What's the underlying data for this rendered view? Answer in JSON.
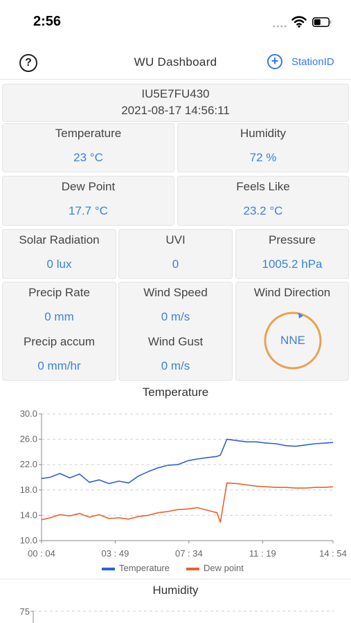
{
  "status_bar": {
    "time": "2:56"
  },
  "nav": {
    "help_label": "?",
    "title": "WU Dashboard",
    "add_label": "+",
    "station_button": "StationID"
  },
  "station": {
    "id": "IU5E7FU430",
    "datetime": "2021-08-17 14:56:11"
  },
  "readings": {
    "temperature": {
      "label": "Temperature",
      "value": "23 °C"
    },
    "humidity": {
      "label": "Humidity",
      "value": "72 %"
    },
    "dew_point": {
      "label": "Dew Point",
      "value": "17.7 °C"
    },
    "feels_like": {
      "label": "Feels Like",
      "value": "23.2 °C"
    },
    "solar_radiation": {
      "label": "Solar Radiation",
      "value": "0 lux"
    },
    "uvi": {
      "label": "UVI",
      "value": "0"
    },
    "pressure": {
      "label": "Pressure",
      "value": "1005.2 hPa"
    },
    "precip_rate": {
      "label": "Precip Rate",
      "value": "0 mm"
    },
    "precip_accum": {
      "label": "Precip accum",
      "value": "0 mm/hr"
    },
    "wind_speed": {
      "label": "Wind Speed",
      "value": "0 m/s"
    },
    "wind_gust": {
      "label": "Wind Gust",
      "value": "0 m/s"
    },
    "wind_direction": {
      "label": "Wind Direction",
      "value": "NNE"
    }
  },
  "chart_data": [
    {
      "type": "line",
      "title": "Temperature",
      "ylim": [
        10.0,
        30.0
      ],
      "y_ticks": [
        "10.0",
        "14.0",
        "18.0",
        "22.0",
        "26.0",
        "30.0"
      ],
      "x_ticks": [
        "00 : 04",
        "03 : 49",
        "07 : 34",
        "11 : 19",
        "14 : 54"
      ],
      "grid": "dashed horizontal",
      "legend_position": "bottom",
      "series": [
        {
          "name": "Temperature",
          "color": "#2f5fd8",
          "x": [
            "00:04",
            "00:30",
            "01:00",
            "01:30",
            "02:00",
            "02:30",
            "03:00",
            "03:30",
            "04:00",
            "04:30",
            "05:00",
            "05:30",
            "06:00",
            "06:30",
            "07:00",
            "07:30",
            "08:00",
            "08:30",
            "09:00",
            "09:10",
            "09:30",
            "10:00",
            "10:30",
            "11:00",
            "11:30",
            "12:00",
            "12:30",
            "13:00",
            "13:30",
            "14:00",
            "14:30",
            "14:54"
          ],
          "values": [
            19.8,
            20.0,
            20.6,
            19.9,
            20.5,
            19.2,
            19.6,
            19.0,
            19.4,
            19.1,
            20.2,
            20.9,
            21.5,
            21.9,
            22.0,
            22.6,
            22.9,
            23.1,
            23.3,
            23.5,
            26.0,
            25.8,
            25.6,
            25.6,
            25.4,
            25.3,
            25.0,
            24.9,
            25.1,
            25.3,
            25.4,
            25.5
          ]
        },
        {
          "name": "Dew point",
          "color": "#e8622c",
          "x": [
            "00:04",
            "00:30",
            "01:00",
            "01:30",
            "02:00",
            "02:30",
            "03:00",
            "03:30",
            "04:00",
            "04:30",
            "05:00",
            "05:30",
            "06:00",
            "06:30",
            "07:00",
            "07:30",
            "08:00",
            "08:30",
            "09:00",
            "09:10",
            "09:30",
            "10:00",
            "10:30",
            "11:00",
            "11:30",
            "12:00",
            "12:30",
            "13:00",
            "13:30",
            "14:00",
            "14:30",
            "14:54"
          ],
          "values": [
            13.3,
            13.6,
            14.1,
            13.9,
            14.3,
            13.7,
            14.1,
            13.5,
            13.6,
            13.4,
            13.8,
            14.0,
            14.4,
            14.6,
            14.9,
            15.0,
            15.2,
            14.8,
            14.4,
            12.9,
            19.1,
            19.0,
            18.8,
            18.6,
            18.5,
            18.4,
            18.4,
            18.3,
            18.3,
            18.4,
            18.4,
            18.5
          ]
        }
      ]
    },
    {
      "type": "line",
      "title": "Humidity",
      "y_ticks": [
        "75"
      ],
      "series": []
    }
  ]
}
